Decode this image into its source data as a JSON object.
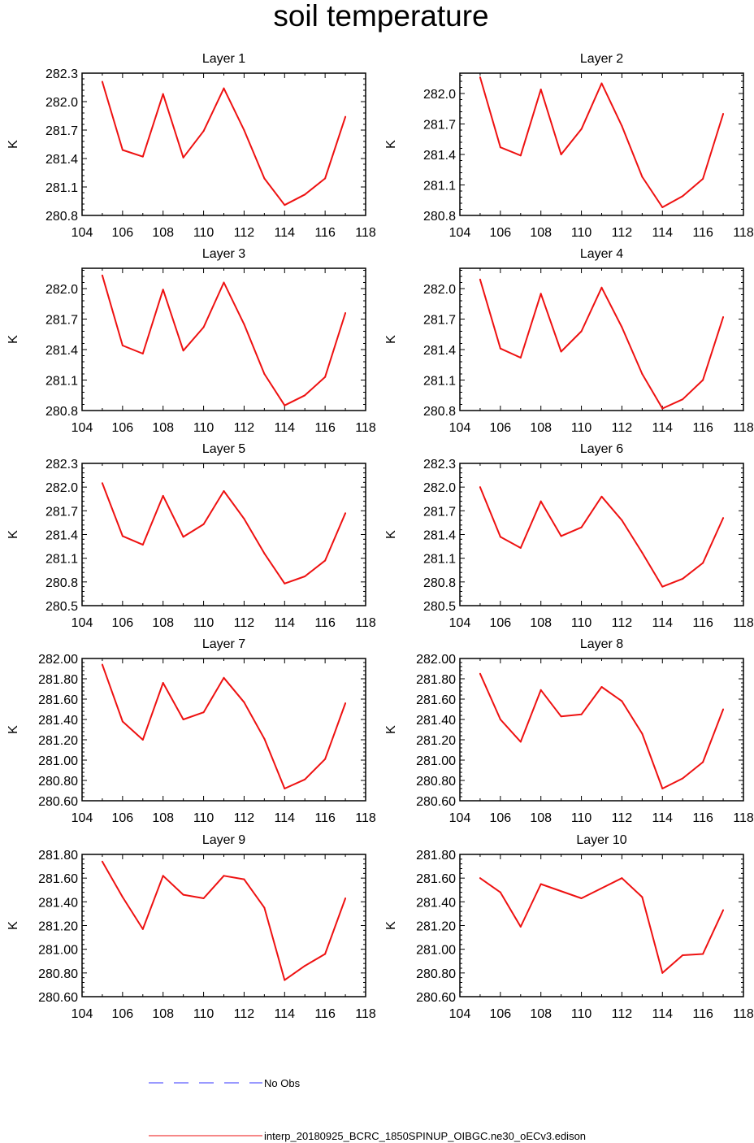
{
  "page": {
    "title": "soil temperature"
  },
  "legend": [
    {
      "label": "No Obs",
      "color": "#3333ff",
      "dash": "dashed"
    },
    {
      "label": "interp_20180925_BCRC_1850SPINUP_OIBGC.ne30_oECv3.edison",
      "color": "#ee1111",
      "dash": "solid"
    }
  ],
  "chart_data": [
    {
      "type": "line",
      "title": "Layer 1",
      "ylabel": "K",
      "xlim": [
        104,
        118
      ],
      "xticks": [
        "104",
        "106",
        "108",
        "110",
        "112",
        "114",
        "116",
        "118"
      ],
      "ylim": [
        280.8,
        282.3
      ],
      "yticks": [
        "282.3",
        "282.0",
        "281.7",
        "281.4",
        "281.1",
        "280.8"
      ],
      "x": [
        105,
        106,
        107,
        108,
        109,
        110,
        111,
        112,
        113,
        114,
        115,
        116,
        117
      ],
      "series": [
        {
          "name": "interp_20180925_BCRC_1850SPINUP_OIBGC.ne30_oECv3.edison",
          "color": "#ee1111",
          "values": [
            282.21,
            281.49,
            281.42,
            282.08,
            281.41,
            281.69,
            282.14,
            281.7,
            281.19,
            280.91,
            281.02,
            281.19,
            281.84
          ]
        }
      ]
    },
    {
      "type": "line",
      "title": "Layer 2",
      "ylabel": "K",
      "xlim": [
        104,
        118
      ],
      "xticks": [
        "104",
        "106",
        "108",
        "110",
        "112",
        "114",
        "116",
        "118"
      ],
      "ylim": [
        280.8,
        282.2
      ],
      "yticks": [
        "282.0",
        "281.7",
        "281.4",
        "281.1",
        "280.8"
      ],
      "x": [
        105,
        106,
        107,
        108,
        109,
        110,
        111,
        112,
        113,
        114,
        115,
        116,
        117
      ],
      "series": [
        {
          "name": "interp_20180925_BCRC_1850SPINUP_OIBGC.ne30_oECv3.edison",
          "color": "#ee1111",
          "values": [
            282.16,
            281.47,
            281.39,
            282.04,
            281.4,
            281.65,
            282.1,
            281.68,
            281.18,
            280.88,
            280.99,
            281.16,
            281.8
          ]
        }
      ]
    },
    {
      "type": "line",
      "title": "Layer 3",
      "ylabel": "K",
      "xlim": [
        104,
        118
      ],
      "xticks": [
        "104",
        "106",
        "108",
        "110",
        "112",
        "114",
        "116",
        "118"
      ],
      "ylim": [
        280.8,
        282.2
      ],
      "yticks": [
        "282.0",
        "281.7",
        "281.4",
        "281.1",
        "280.8"
      ],
      "x": [
        105,
        106,
        107,
        108,
        109,
        110,
        111,
        112,
        113,
        114,
        115,
        116,
        117
      ],
      "series": [
        {
          "name": "interp_20180925_BCRC_1850SPINUP_OIBGC.ne30_oECv3.edison",
          "color": "#ee1111",
          "values": [
            282.13,
            281.44,
            281.36,
            281.99,
            281.39,
            281.62,
            282.06,
            281.65,
            281.16,
            280.85,
            280.95,
            281.13,
            281.76
          ]
        }
      ]
    },
    {
      "type": "line",
      "title": "Layer 4",
      "ylabel": "K",
      "xlim": [
        104,
        118
      ],
      "xticks": [
        "104",
        "106",
        "108",
        "110",
        "112",
        "114",
        "116",
        "118"
      ],
      "ylim": [
        280.8,
        282.2
      ],
      "yticks": [
        "282.0",
        "281.7",
        "281.4",
        "281.1",
        "280.8"
      ],
      "x": [
        105,
        106,
        107,
        108,
        109,
        110,
        111,
        112,
        113,
        114,
        115,
        116,
        117
      ],
      "series": [
        {
          "name": "interp_20180925_BCRC_1850SPINUP_OIBGC.ne30_oECv3.edison",
          "color": "#ee1111",
          "values": [
            282.09,
            281.41,
            281.32,
            281.95,
            281.38,
            281.58,
            282.01,
            281.62,
            281.16,
            280.82,
            280.91,
            281.1,
            281.72
          ]
        }
      ]
    },
    {
      "type": "line",
      "title": "Layer 5",
      "ylabel": "K",
      "xlim": [
        104,
        118
      ],
      "xticks": [
        "104",
        "106",
        "108",
        "110",
        "112",
        "114",
        "116",
        "118"
      ],
      "ylim": [
        280.5,
        282.3
      ],
      "yticks": [
        "282.3",
        "282.0",
        "281.7",
        "281.4",
        "281.1",
        "280.8",
        "280.5"
      ],
      "x": [
        105,
        106,
        107,
        108,
        109,
        110,
        111,
        112,
        113,
        114,
        115,
        116,
        117
      ],
      "series": [
        {
          "name": "interp_20180925_BCRC_1850SPINUP_OIBGC.ne30_oECv3.edison",
          "color": "#ee1111",
          "values": [
            282.05,
            281.38,
            281.27,
            281.89,
            281.37,
            281.53,
            281.95,
            281.6,
            281.16,
            280.78,
            280.87,
            281.07,
            281.67
          ]
        }
      ]
    },
    {
      "type": "line",
      "title": "Layer 6",
      "ylabel": "K",
      "xlim": [
        104,
        118
      ],
      "xticks": [
        "104",
        "106",
        "108",
        "110",
        "112",
        "114",
        "116",
        "118"
      ],
      "ylim": [
        280.5,
        282.3
      ],
      "yticks": [
        "282.3",
        "282.0",
        "281.7",
        "281.4",
        "281.1",
        "280.8",
        "280.5"
      ],
      "x": [
        105,
        106,
        107,
        108,
        109,
        110,
        111,
        112,
        113,
        114,
        115,
        116,
        117
      ],
      "series": [
        {
          "name": "interp_20180925_BCRC_1850SPINUP_OIBGC.ne30_oECv3.edison",
          "color": "#ee1111",
          "values": [
            282.0,
            281.37,
            281.23,
            281.82,
            281.38,
            281.49,
            281.88,
            281.58,
            281.17,
            280.74,
            280.84,
            281.04,
            281.61
          ]
        }
      ]
    },
    {
      "type": "line",
      "title": "Layer 7",
      "ylabel": "K",
      "xlim": [
        104,
        118
      ],
      "xticks": [
        "104",
        "106",
        "108",
        "110",
        "112",
        "114",
        "116",
        "118"
      ],
      "ylim": [
        280.6,
        282.0
      ],
      "yticks": [
        "282.00",
        "281.80",
        "281.60",
        "281.40",
        "281.20",
        "281.00",
        "280.80",
        "280.60"
      ],
      "x": [
        105,
        106,
        107,
        108,
        109,
        110,
        111,
        112,
        113,
        114,
        115,
        116,
        117
      ],
      "series": [
        {
          "name": "interp_20180925_BCRC_1850SPINUP_OIBGC.ne30_oECv3.edison",
          "color": "#ee1111",
          "values": [
            281.94,
            281.38,
            281.2,
            281.76,
            281.4,
            281.47,
            281.81,
            281.57,
            281.21,
            280.72,
            280.81,
            281.01,
            281.56
          ]
        }
      ]
    },
    {
      "type": "line",
      "title": "Layer 8",
      "ylabel": "K",
      "xlim": [
        104,
        118
      ],
      "xticks": [
        "104",
        "106",
        "108",
        "110",
        "112",
        "114",
        "116",
        "118"
      ],
      "ylim": [
        280.6,
        282.0
      ],
      "yticks": [
        "282.00",
        "281.80",
        "281.60",
        "281.40",
        "281.20",
        "281.00",
        "280.80",
        "280.60"
      ],
      "x": [
        105,
        106,
        107,
        108,
        109,
        110,
        111,
        112,
        113,
        114,
        115,
        116,
        117
      ],
      "series": [
        {
          "name": "interp_20180925_BCRC_1850SPINUP_OIBGC.ne30_oECv3.edison",
          "color": "#ee1111",
          "values": [
            281.85,
            281.4,
            281.18,
            281.69,
            281.43,
            281.45,
            281.72,
            281.58,
            281.26,
            280.72,
            280.82,
            280.98,
            281.5
          ]
        }
      ]
    },
    {
      "type": "line",
      "title": "Layer 9",
      "ylabel": "K",
      "xlim": [
        104,
        118
      ],
      "xticks": [
        "104",
        "106",
        "108",
        "110",
        "112",
        "114",
        "116",
        "118"
      ],
      "ylim": [
        280.6,
        281.8
      ],
      "yticks": [
        "281.80",
        "281.60",
        "281.40",
        "281.20",
        "281.00",
        "280.80",
        "280.60"
      ],
      "x": [
        105,
        106,
        107,
        108,
        109,
        110,
        111,
        112,
        113,
        114,
        115,
        116,
        117
      ],
      "series": [
        {
          "name": "interp_20180925_BCRC_1850SPINUP_OIBGC.ne30_oECv3.edison",
          "color": "#ee1111",
          "values": [
            281.74,
            281.44,
            281.17,
            281.62,
            281.46,
            281.43,
            281.62,
            281.59,
            281.35,
            280.74,
            280.86,
            280.96,
            281.43
          ]
        }
      ]
    },
    {
      "type": "line",
      "title": "Layer 10",
      "ylabel": "K",
      "xlim": [
        104,
        118
      ],
      "xticks": [
        "104",
        "106",
        "108",
        "110",
        "112",
        "114",
        "116",
        "118"
      ],
      "ylim": [
        280.6,
        281.8
      ],
      "yticks": [
        "281.80",
        "281.60",
        "281.40",
        "281.20",
        "281.00",
        "280.80",
        "280.60"
      ],
      "x": [
        105,
        106,
        107,
        108,
        110,
        112,
        113,
        114,
        115,
        116,
        117
      ],
      "series": [
        {
          "name": "interp_20180925_BCRC_1850SPINUP_OIBGC.ne30_oECv3.edison",
          "color": "#ee1111",
          "values": [
            281.6,
            281.48,
            281.19,
            281.55,
            281.43,
            281.6,
            281.44,
            280.8,
            280.95,
            280.96,
            281.33
          ]
        }
      ]
    }
  ]
}
